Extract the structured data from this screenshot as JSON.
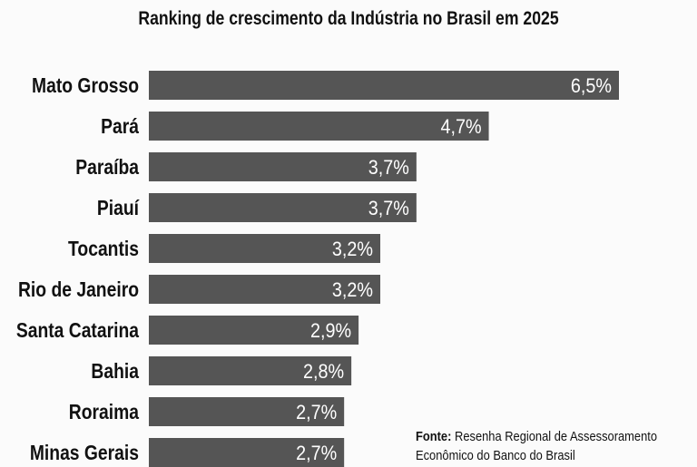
{
  "chart_data": {
    "type": "bar",
    "orientation": "horizontal",
    "title": "Ranking de crescimento da Indústria no Brasil em 2025",
    "categories": [
      "Mato Grosso",
      "Pará",
      "Paraíba",
      "Piauí",
      "Tocantis",
      "Rio de Janeiro",
      "Santa Catarina",
      "Bahia",
      "Roraima",
      "Minas Gerais"
    ],
    "values": [
      6.5,
      4.7,
      3.7,
      3.7,
      3.2,
      3.2,
      2.9,
      2.8,
      2.7,
      2.7
    ],
    "data_labels": [
      "6,5%",
      "4,7%",
      "3,7%",
      "3,7%",
      "3,2%",
      "3,2%",
      "2,9%",
      "2,8%",
      "2,7%",
      "2,7%"
    ],
    "xlim": [
      0,
      6.5
    ],
    "grid": false,
    "bar_color": "#555555",
    "label_color": "#ffffff"
  },
  "source": {
    "label": "Fonte:",
    "line1": "Resenha Regional de Assessoramento",
    "line2": "Econômico do Banco do Brasil"
  }
}
